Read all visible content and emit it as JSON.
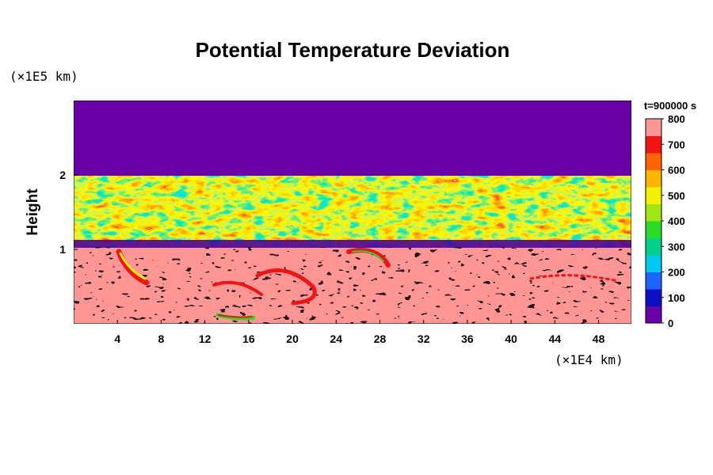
{
  "chart_data": {
    "type": "heatmap",
    "title": "Potential Temperature Deviation",
    "xlabel": "",
    "ylabel": "Height",
    "x_unit_label": "(×1E4 km)",
    "y_unit_label": "(×1E5 km)",
    "time_label": "t=900000 s",
    "xlim": [
      0,
      51
    ],
    "ylim": [
      0,
      3
    ],
    "x_ticks": [
      4,
      8,
      12,
      16,
      20,
      24,
      28,
      32,
      36,
      40,
      44,
      48
    ],
    "y_ticks": [
      1,
      2
    ],
    "colorbar": {
      "min": 0,
      "max": 800,
      "ticks": [
        0,
        100,
        200,
        300,
        400,
        500,
        600,
        700,
        800
      ],
      "colors": [
        "#6a00a8",
        "#0f0fc8",
        "#1e64ff",
        "#00c8f0",
        "#00d28c",
        "#28dc28",
        "#a0e614",
        "#f0f000",
        "#ffb400",
        "#ff6400",
        "#f01414",
        "#ff9696"
      ]
    },
    "field_description_values": {
      "upper_uniform_value": 0,
      "lower_background_value": 800,
      "turbulent_layer_range": [
        1.05,
        2.0
      ],
      "thin_low_band_height": 1.05
    }
  }
}
